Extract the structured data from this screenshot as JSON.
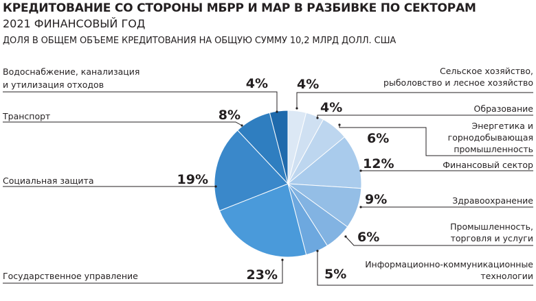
{
  "header": {
    "title": "КРЕДИТОВАНИЕ СО СТОРОНЫ МБРР И МАР В РАЗБИВКЕ ПО СЕКТОРАМ",
    "subtitle": "2021 ФИНАНСОВЫЙ ГОД",
    "note": "ДОЛЯ В ОБЩЕМ ОБЪЕМЕ КРЕДИТОВАНИЯ НА ОБЩУЮ СУММУ 10,2 МЛРД ДОЛЛ. США"
  },
  "chart_data": {
    "type": "pie",
    "start": "12 o'clock",
    "direction": "clockwise",
    "slices": [
      {
        "label": [
          "Сельское хозяйство,",
          "рыболовство и лесное хозяйство"
        ],
        "pct_label": "4%",
        "value": 4,
        "color": "#dce8f5"
      },
      {
        "label": [
          "Образование"
        ],
        "pct_label": "4%",
        "value": 4,
        "color": "#cfe0f2"
      },
      {
        "label": [
          "Энергетика и",
          "горнодобывающая",
          "промышленность"
        ],
        "pct_label": "6%",
        "value": 6,
        "color": "#bdd6ef"
      },
      {
        "label": [
          "Финансовый сектор"
        ],
        "pct_label": "12%",
        "value": 12,
        "color": "#a9cbec"
      },
      {
        "label": [
          "Здравоохранение"
        ],
        "pct_label": "9%",
        "value": 9,
        "color": "#94bee6"
      },
      {
        "label": [
          "Промышленность,",
          "торговля и услуги"
        ],
        "pct_label": "6%",
        "value": 6,
        "color": "#82b3e2"
      },
      {
        "label": [
          "Информационно-коммуникационные",
          "технологии"
        ],
        "pct_label": "5%",
        "value": 5,
        "color": "#6da8df"
      },
      {
        "label": [
          "Государственное управление"
        ],
        "pct_label": "23%",
        "value": 23,
        "color": "#4a9ada"
      },
      {
        "label": [
          "Социальная защита"
        ],
        "pct_label": "19%",
        "value": 19,
        "color": "#3a88ca"
      },
      {
        "label": [
          "Транспорт"
        ],
        "pct_label": "8%",
        "value": 8,
        "color": "#2f7ec0"
      },
      {
        "label": [
          "Водоснабжение, канализация",
          "и утилизация отходов"
        ],
        "pct_label": "4%",
        "value": 4,
        "color": "#1f6aac"
      }
    ]
  }
}
